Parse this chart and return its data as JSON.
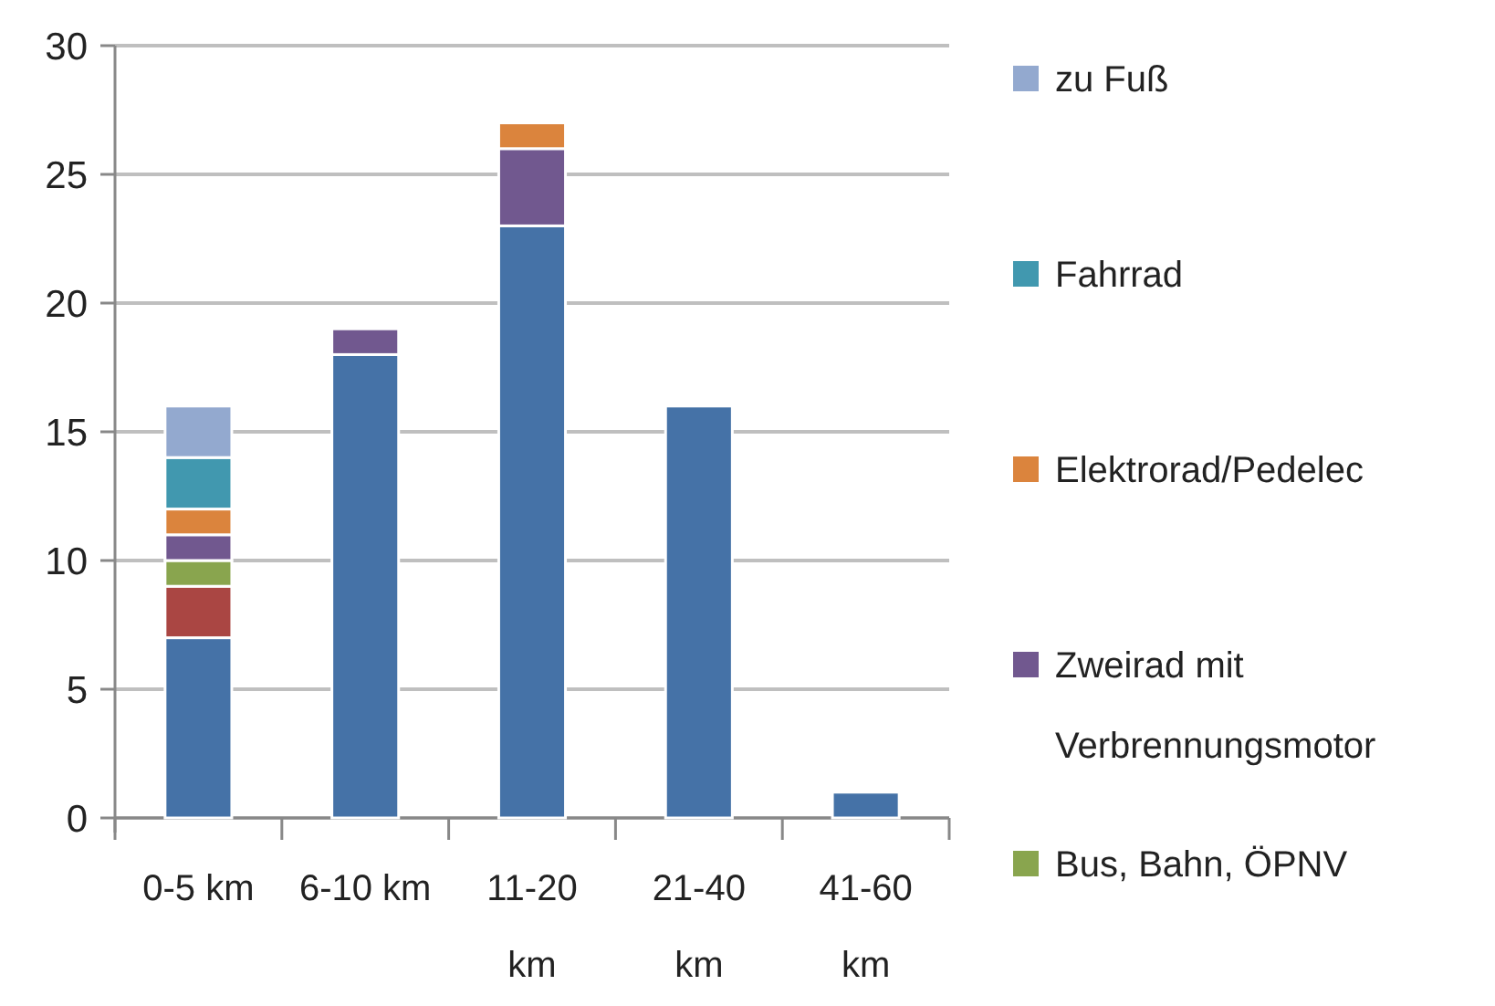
{
  "chart_data": {
    "type": "bar",
    "stacked": true,
    "categories": [
      "0-5 km",
      "6-10 km",
      "11-20 km",
      "21-40 km",
      "41-60 km"
    ],
    "series": [
      {
        "color": "#4572a7",
        "values": [
          7,
          18,
          23,
          16,
          1
        ]
      },
      {
        "color": "#aa4643",
        "values": [
          2,
          0,
          0,
          0,
          0
        ]
      },
      {
        "name": "Bus, Bahn, ÖPNV",
        "color": "#89a54e",
        "values": [
          1,
          0,
          0,
          0,
          0
        ]
      },
      {
        "name": "Zweirad mit Verbrennungsmotor",
        "color": "#71588f",
        "values": [
          1,
          1,
          3,
          0,
          0
        ]
      },
      {
        "name": "Elektrorad/Pedelec",
        "color": "#db843d",
        "values": [
          1,
          0,
          1,
          0,
          0
        ]
      },
      {
        "name": "Fahrrad",
        "color": "#4198af",
        "values": [
          2,
          0,
          0,
          0,
          0
        ]
      },
      {
        "name": "zu Fuß",
        "color": "#93a9cf",
        "values": [
          2,
          0,
          0,
          0,
          0
        ]
      }
    ],
    "ylim": [
      0,
      30
    ],
    "yticks": [
      0,
      5,
      10,
      15,
      20,
      25,
      30
    ],
    "grid": "y",
    "legend": "right"
  }
}
